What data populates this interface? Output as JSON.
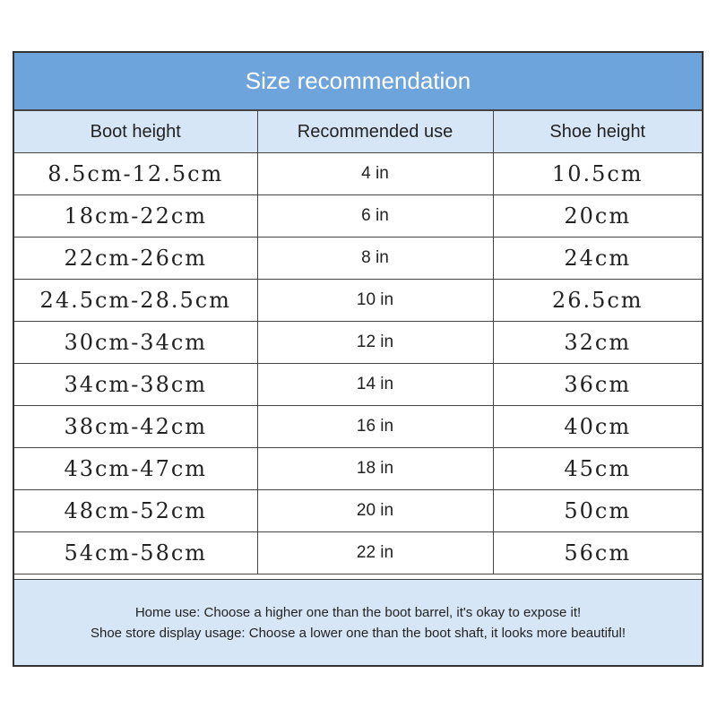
{
  "title": "Size recommendation",
  "headers": [
    "Boot height",
    "Recommended use",
    "Shoe height"
  ],
  "rows": [
    {
      "boot_height": "8.5cm-12.5cm",
      "recommended_use": "4 in",
      "shoe_height": "10.5cm"
    },
    {
      "boot_height": "18cm-22cm",
      "recommended_use": "6 in",
      "shoe_height": "20cm"
    },
    {
      "boot_height": "22cm-26cm",
      "recommended_use": "8 in",
      "shoe_height": "24cm"
    },
    {
      "boot_height": "24.5cm-28.5cm",
      "recommended_use": "10 in",
      "shoe_height": "26.5cm"
    },
    {
      "boot_height": "30cm-34cm",
      "recommended_use": "12 in",
      "shoe_height": "32cm"
    },
    {
      "boot_height": "34cm-38cm",
      "recommended_use": "14 in",
      "shoe_height": "36cm"
    },
    {
      "boot_height": "38cm-42cm",
      "recommended_use": "16 in",
      "shoe_height": "40cm"
    },
    {
      "boot_height": "43cm-47cm",
      "recommended_use": "18 in",
      "shoe_height": "45cm"
    },
    {
      "boot_height": "48cm-52cm",
      "recommended_use": "20 in",
      "shoe_height": "50cm"
    },
    {
      "boot_height": "54cm-58cm",
      "recommended_use": "22 in",
      "shoe_height": "56cm"
    }
  ],
  "notes": [
    "Home use: Choose a higher one than the boot barrel, it's okay to expose it!",
    "Shoe store display usage: Choose a lower one than the boot shaft, it looks more beautiful!"
  ],
  "colors": {
    "header_blue": "#6ea4dc",
    "light_blue": "#d7e6f6",
    "border": "#444444"
  }
}
